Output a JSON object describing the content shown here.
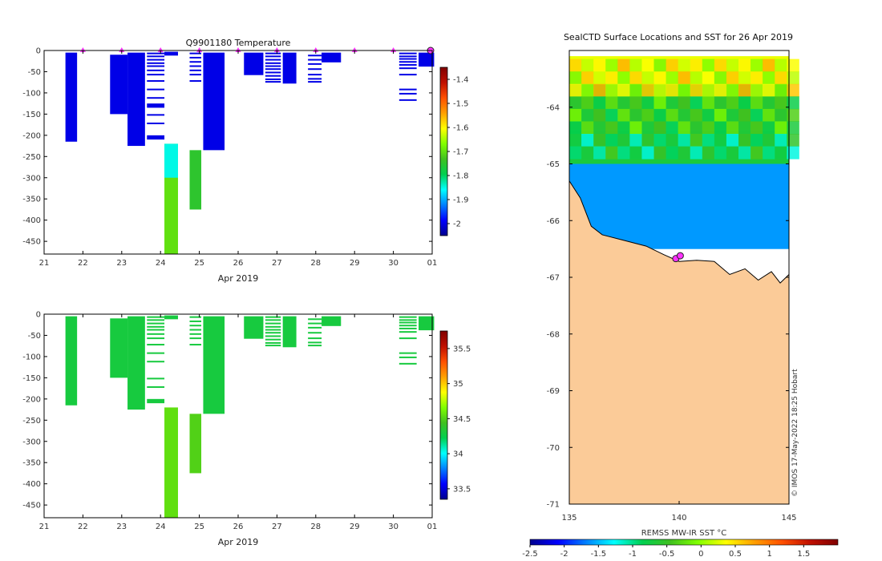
{
  "colors": {
    "jet": [
      "#00008f",
      "#0000ff",
      "#0080ff",
      "#00ffff",
      "#00d050",
      "#40c020",
      "#80ff00",
      "#ffff00",
      "#ffa000",
      "#ff5000",
      "#c01000",
      "#800000"
    ],
    "land": "#fbcb98",
    "marker": "#ff33ff",
    "contour": "#000000"
  },
  "chart_data": [
    {
      "id": "temperature",
      "type": "heatmap",
      "title": "Q9901180  Temperature",
      "xlabel": "Apr 2019",
      "ylabel": "",
      "x_ticks": [
        "21",
        "22",
        "23",
        "24",
        "25",
        "26",
        "27",
        "28",
        "29",
        "30",
        "01"
      ],
      "x_tick_values": [
        21,
        22,
        23,
        24,
        25,
        26,
        27,
        28,
        29,
        30,
        31
      ],
      "xlim": [
        21,
        31
      ],
      "ylim": [
        -480,
        0
      ],
      "y_ticks": [
        "0",
        "-50",
        "-100",
        "-150",
        "-200",
        "-250",
        "-300",
        "-350",
        "-400",
        "-450"
      ],
      "y_tick_values": [
        0,
        -50,
        -100,
        -150,
        -200,
        -250,
        -300,
        -350,
        -400,
        -450
      ],
      "colorbar": {
        "min": -2.05,
        "max": -1.35,
        "ticks": [
          "-1.4",
          "-1.5",
          "-1.6",
          "-1.7",
          "-1.8",
          "-1.9",
          "-2"
        ],
        "tick_values": [
          -1.4,
          -1.5,
          -1.6,
          -1.7,
          -1.8,
          -1.9,
          -2
        ]
      },
      "surface_markers": [
        22,
        23,
        24,
        25,
        26,
        27,
        28,
        29,
        30
      ],
      "last_marker": 31,
      "profiles": [
        {
          "x0": 21.55,
          "x1": 21.85,
          "bottom": -215,
          "top": -5,
          "value": -2.0
        },
        {
          "x0": 22.7,
          "x1": 23.15,
          "bottom": -150,
          "top": -10,
          "value": -2.0
        },
        {
          "x0": 23.15,
          "x1": 23.6,
          "bottom": -225,
          "top": -5,
          "value": -2.0
        },
        {
          "x0": 23.65,
          "x1": 24.1,
          "bottom": -210,
          "top": -200,
          "value": -2.0
        },
        {
          "x0": 23.65,
          "x1": 24.1,
          "bottom": -135,
          "top": -125,
          "value": -2.0
        },
        {
          "x0": 24.1,
          "x1": 24.45,
          "bottom": -12,
          "top": -3,
          "value": -2.0
        },
        {
          "x0": 24.1,
          "x1": 24.45,
          "bottom": -480,
          "top": -220,
          "value": -1.7
        },
        {
          "x0": 24.1,
          "x1": 24.45,
          "bottom": -300,
          "top": -220,
          "value": -1.85
        },
        {
          "x0": 24.75,
          "x1": 25.05,
          "bottom": -375,
          "top": -235,
          "value": -1.75
        },
        {
          "x0": 25.1,
          "x1": 25.65,
          "bottom": -235,
          "top": -5,
          "value": -2.0
        },
        {
          "x0": 26.15,
          "x1": 26.65,
          "bottom": -58,
          "top": -5,
          "value": -2.0
        },
        {
          "x0": 27.15,
          "x1": 27.5,
          "bottom": -78,
          "top": -5,
          "value": -2.0
        },
        {
          "x0": 28.15,
          "x1": 28.65,
          "bottom": -28,
          "top": -5,
          "value": -2.0
        },
        {
          "x0": 30.65,
          "x1": 31.05,
          "bottom": -38,
          "top": -5,
          "value": -2.0
        }
      ],
      "streaks": [
        {
          "x0": 23.65,
          "x1": 24.1,
          "depths": [
            -5,
            -12,
            -20,
            -28,
            -35,
            -45,
            -55,
            -70,
            -90,
            -110,
            -150,
            -170
          ]
        },
        {
          "x0": 24.75,
          "x1": 25.05,
          "depths": [
            -5,
            -15,
            -25,
            -35,
            -45,
            -55,
            -70
          ]
        },
        {
          "x0": 26.7,
          "x1": 27.1,
          "depths": [
            -5,
            -12,
            -20,
            -28,
            -35,
            -42,
            -50,
            -58,
            -66,
            -72
          ]
        },
        {
          "x0": 27.8,
          "x1": 28.15,
          "depths": [
            -10,
            -20,
            -30,
            -42,
            -55,
            -65,
            -72
          ]
        },
        {
          "x0": 30.15,
          "x1": 30.6,
          "depths": [
            -5,
            -12,
            -18,
            -25,
            -32,
            -40,
            -55,
            -90,
            -100,
            -115
          ]
        }
      ]
    },
    {
      "id": "salinity",
      "type": "heatmap",
      "title": "",
      "xlabel": "Apr 2019",
      "ylabel": "",
      "x_ticks": [
        "21",
        "22",
        "23",
        "24",
        "25",
        "26",
        "27",
        "28",
        "29",
        "30",
        "01"
      ],
      "x_tick_values": [
        21,
        22,
        23,
        24,
        25,
        26,
        27,
        28,
        29,
        30,
        31
      ],
      "xlim": [
        21,
        31
      ],
      "ylim": [
        -480,
        0
      ],
      "y_ticks": [
        "0",
        "-50",
        "-100",
        "-150",
        "-200",
        "-250",
        "-300",
        "-350",
        "-400",
        "-450"
      ],
      "y_tick_values": [
        0,
        -50,
        -100,
        -150,
        -200,
        -250,
        -300,
        -350,
        -400,
        -450
      ],
      "colorbar": {
        "min": 33.35,
        "max": 35.75,
        "ticks": [
          "35.5",
          "35",
          "34.5",
          "34",
          "33.5"
        ],
        "tick_values": [
          35.5,
          35,
          34.5,
          34,
          33.5
        ]
      },
      "profiles": [
        {
          "x0": 21.55,
          "x1": 21.85,
          "bottom": -215,
          "top": -5,
          "value": 34.3
        },
        {
          "x0": 22.7,
          "x1": 23.15,
          "bottom": -150,
          "top": -10,
          "value": 34.3
        },
        {
          "x0": 23.15,
          "x1": 23.6,
          "bottom": -225,
          "top": -5,
          "value": 34.3
        },
        {
          "x0": 23.65,
          "x1": 24.1,
          "bottom": -210,
          "top": -200,
          "value": 34.3
        },
        {
          "x0": 24.1,
          "x1": 24.45,
          "bottom": -12,
          "top": -3,
          "value": 34.3
        },
        {
          "x0": 24.1,
          "x1": 24.45,
          "bottom": -480,
          "top": -220,
          "value": 34.55
        },
        {
          "x0": 24.75,
          "x1": 25.05,
          "bottom": -375,
          "top": -235,
          "value": 34.5
        },
        {
          "x0": 25.1,
          "x1": 25.65,
          "bottom": -235,
          "top": -5,
          "value": 34.3
        },
        {
          "x0": 26.15,
          "x1": 26.65,
          "bottom": -58,
          "top": -5,
          "value": 34.3
        },
        {
          "x0": 27.15,
          "x1": 27.5,
          "bottom": -78,
          "top": -5,
          "value": 34.3
        },
        {
          "x0": 28.15,
          "x1": 28.65,
          "bottom": -28,
          "top": -5,
          "value": 34.3
        },
        {
          "x0": 30.65,
          "x1": 31.05,
          "bottom": -38,
          "top": -5,
          "value": 34.3
        }
      ],
      "streaks": [
        {
          "x0": 23.65,
          "x1": 24.1,
          "depths": [
            -5,
            -12,
            -20,
            -28,
            -35,
            -45,
            -55,
            -70,
            -90,
            -110,
            -150,
            -170
          ]
        },
        {
          "x0": 24.75,
          "x1": 25.05,
          "depths": [
            -5,
            -15,
            -25,
            -35,
            -45,
            -55,
            -70
          ]
        },
        {
          "x0": 26.7,
          "x1": 27.1,
          "depths": [
            -5,
            -12,
            -20,
            -28,
            -35,
            -42,
            -50,
            -58,
            -66,
            -72
          ]
        },
        {
          "x0": 27.8,
          "x1": 28.15,
          "depths": [
            -10,
            -20,
            -30,
            -42,
            -55,
            -65,
            -72
          ]
        },
        {
          "x0": 30.15,
          "x1": 30.6,
          "depths": [
            -5,
            -12,
            -18,
            -25,
            -32,
            -40,
            -55,
            -90,
            -100,
            -115
          ]
        }
      ]
    },
    {
      "id": "sst-map",
      "type": "heatmap",
      "title": "SealCTD Surface Locations and SST for 26 Apr 2019",
      "xlabel": "",
      "ylabel": "",
      "xlim": [
        135,
        145
      ],
      "ylim": [
        -71,
        -63
      ],
      "x_ticks": [
        "135",
        "140",
        "145"
      ],
      "x_tick_values": [
        135,
        140,
        145
      ],
      "y_ticks": [
        "-64",
        "-65",
        "-66",
        "-67",
        "-68",
        "-69",
        "-70",
        "-71"
      ],
      "y_tick_values": [
        -64,
        -65,
        -66,
        -67,
        -68,
        -69,
        -70,
        -71
      ],
      "colorbar": {
        "label": "REMSS MW-IR SST °C",
        "min": -2.5,
        "max": 2.0,
        "ticks": [
          "-2.5",
          "-2",
          "-1.5",
          "-1",
          "-0.5",
          "0",
          "0.5",
          "1",
          "1.5"
        ],
        "tick_values": [
          -2.5,
          -2,
          -1.5,
          -1,
          -0.5,
          0,
          0.5,
          1,
          1.5
        ]
      },
      "sst_bands": [
        {
          "lat_top": -63.1,
          "lat_bottom": -63.6,
          "value": 0.3
        },
        {
          "lat_top": -63.6,
          "lat_bottom": -64.4,
          "value": -0.5
        },
        {
          "lat_top": -64.4,
          "lat_bottom": -65.0,
          "value": -0.7
        },
        {
          "lat_top": -65.0,
          "lat_bottom": -66.5,
          "value": -1.6
        }
      ],
      "coast_lon": [
        135.0,
        135.5,
        136.0,
        136.5,
        137.5,
        138.5,
        139.3,
        140.0,
        140.8,
        141.6,
        142.3,
        143.0,
        143.6,
        144.2,
        144.6,
        145.0
      ],
      "coast_lat": [
        -65.3,
        -65.6,
        -66.1,
        -66.25,
        -66.35,
        -66.45,
        -66.6,
        -66.72,
        -66.7,
        -66.72,
        -66.95,
        -66.85,
        -67.05,
        -66.9,
        -67.1,
        -66.95
      ],
      "stations": [
        {
          "lon": 139.85,
          "lat": -66.67
        },
        {
          "lon": 140.05,
          "lat": -66.62
        }
      ]
    }
  ],
  "credit": "© IMOS 17-May-2022 18:25 Hobart"
}
